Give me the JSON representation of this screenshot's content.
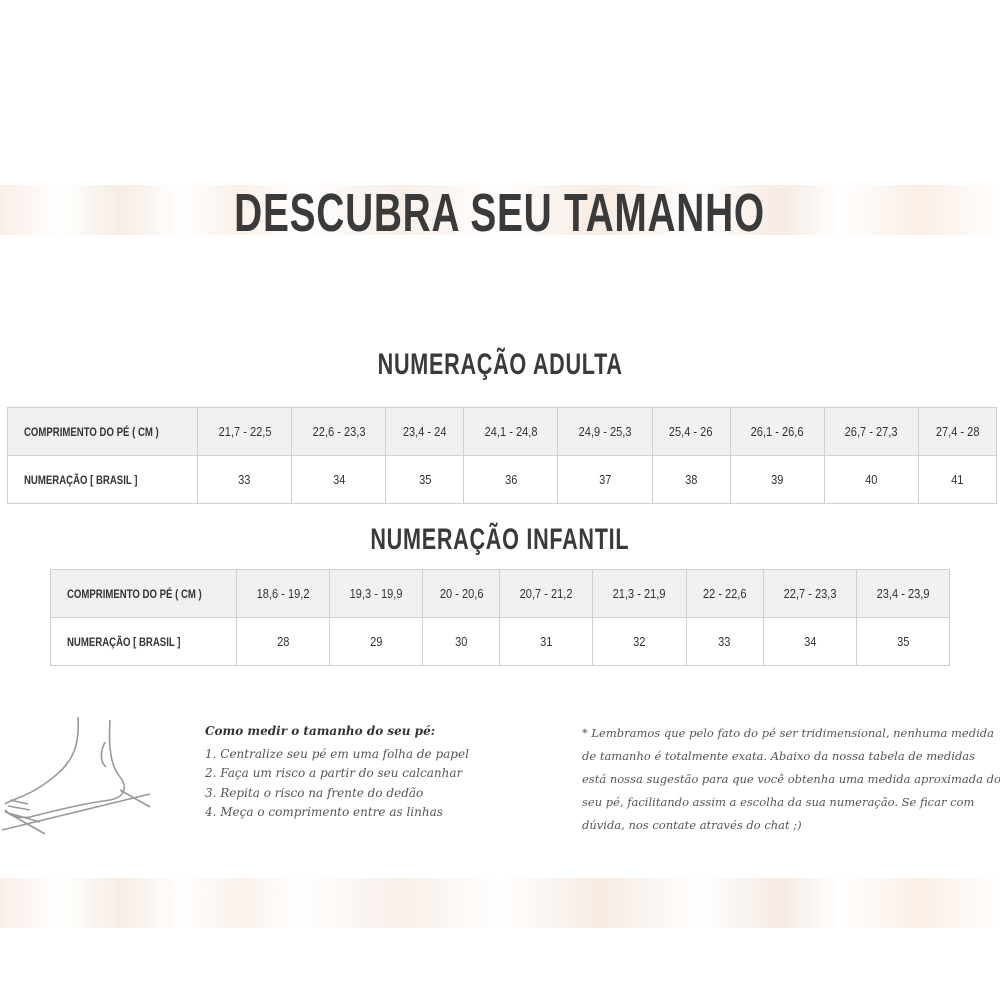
{
  "title": "DESCUBRA SEU TAMANHO",
  "adult": {
    "heading": "NUMERAÇÃO ADULTA",
    "row_labels": [
      "COMPRIMENTO DO PÉ ( CM )",
      "NUMERAÇÃO [ BRASIL ]"
    ],
    "lengths": [
      "21,7 - 22,5",
      "22,6 - 23,3",
      "23,4 - 24",
      "24,1 - 24,8",
      "24,9 - 25,3",
      "25,4 - 26",
      "26,1 - 26,6",
      "26,7 - 27,3",
      "27,4 - 28"
    ],
    "sizes": [
      "33",
      "34",
      "35",
      "36",
      "37",
      "38",
      "39",
      "40",
      "41"
    ]
  },
  "infant": {
    "heading": "NUMERAÇÃO INFANTIL",
    "row_labels": [
      "COMPRIMENTO DO PÉ ( CM )",
      "NUMERAÇÃO [ BRASIL ]"
    ],
    "lengths": [
      "18,6 - 19,2",
      "19,3 - 19,9",
      "20 - 20,6",
      "20,7 - 21,2",
      "21,3 - 21,9",
      "22 - 22,6",
      "22,7 - 23,3",
      "23,4 - 23,9"
    ],
    "sizes": [
      "28",
      "29",
      "30",
      "31",
      "32",
      "33",
      "34",
      "35"
    ]
  },
  "how_to": {
    "title": "Como medir o tamanho do seu pé:",
    "steps": [
      "1. Centralize seu pé em uma folha de papel",
      "2. Faça um risco a partir do seu calcanhar",
      "3. Repita o risco na frente do dedão",
      "4. Meça o comprimento entre as linhas"
    ]
  },
  "note": "* Lembramos que pelo fato do pé ser tridimensional, nenhuma medida de tamanho é totalmente exata. Abaixo da nossa tabela de medidas está nossa sugestão para que você obtenha uma medida aproximada do seu pé, facilitando assim a escolha da sua numeração. Se ficar com dúvida, nos contate através do chat ;)"
}
